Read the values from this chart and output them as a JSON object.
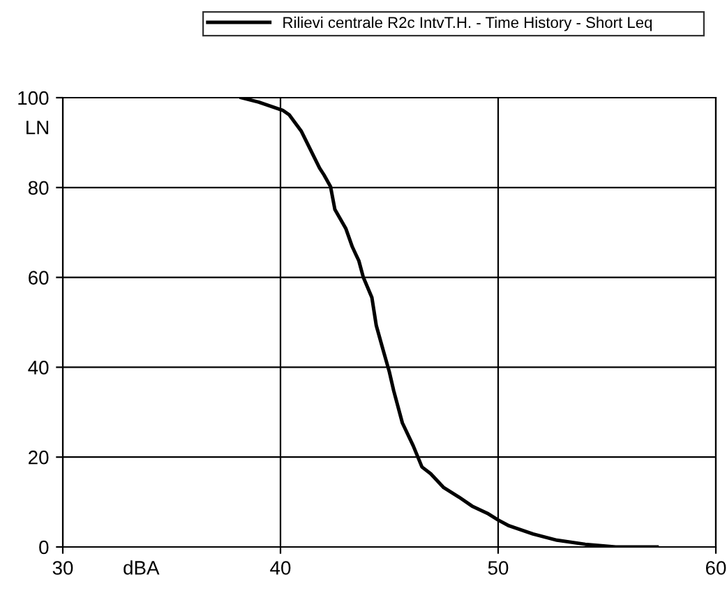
{
  "chart_data": {
    "type": "line",
    "xlabel": "dBA",
    "ylabel": "LN",
    "xlim": [
      30,
      60
    ],
    "xticks": [
      30,
      40,
      50,
      60
    ],
    "ylim": [
      0,
      100
    ],
    "yticks": [
      0,
      20,
      40,
      60,
      80,
      100
    ],
    "grid": true,
    "legend": "top",
    "line_style": "solid",
    "marker": "none",
    "series": [
      {
        "name": "Rilievi centrale R2c IntvT.H. - Time History - Short Leq",
        "color": "#000000",
        "x": [
          38.2,
          39.0,
          40.1,
          40.4,
          40.95,
          41.8,
          42.0,
          42.3,
          42.5,
          43.0,
          43.3,
          43.6,
          43.8,
          44.2,
          44.4,
          44.7,
          45.0,
          45.2,
          45.6,
          46.1,
          46.5,
          46.9,
          47.5,
          48.2,
          48.8,
          49.5,
          50.0,
          50.5,
          51.6,
          52.7,
          54.0,
          55.4,
          57.3
        ],
        "values": [
          100,
          99,
          97.2,
          96.2,
          92.6,
          84.3,
          82.8,
          80.2,
          75.1,
          70.9,
          66.8,
          63.7,
          60.1,
          55.5,
          49.3,
          44.1,
          39.0,
          34.8,
          27.6,
          22.5,
          17.8,
          16.3,
          13.2,
          11.1,
          9.1,
          7.5,
          6.0,
          4.7,
          2.9,
          1.5,
          0.6,
          0,
          0
        ]
      }
    ]
  }
}
